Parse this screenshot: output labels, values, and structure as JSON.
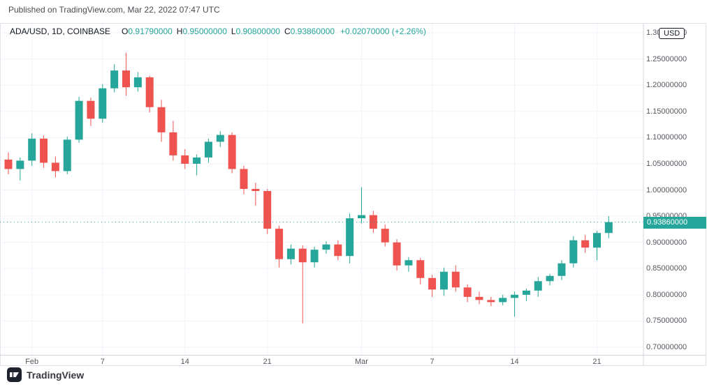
{
  "published_note": "Published on TradingView.com, Mar 22, 2022 07:47 UTC",
  "legend": {
    "symbol": "ADA/USD, 1D, COINBASE",
    "ohlc": [
      {
        "label": "O",
        "value": "0.91790000"
      },
      {
        "label": "H",
        "value": "0.95000000"
      },
      {
        "label": "L",
        "value": "0.90800000"
      },
      {
        "label": "C",
        "value": "0.93860000"
      }
    ],
    "change": "+0.02070000 (+2.26%)"
  },
  "footer": {
    "brand": "TradingView"
  },
  "colors": {
    "up": "#26a69a",
    "down": "#ef5350",
    "grid": "#f0f3fa",
    "axis_border": "#d1d4dc",
    "axis_text": "#555860",
    "badge_bg": "#26a69a"
  },
  "chart_data": {
    "type": "candlestick",
    "symbol": "ADA/USD",
    "interval": "1D",
    "exchange": "COINBASE",
    "title": "ADA/USD, 1D, COINBASE",
    "currency": "USD",
    "last_price": 0.9386,
    "last_price_label": "0.93860000",
    "open": 0.9179,
    "high": 0.95,
    "low": 0.908,
    "close": 0.9386,
    "change_abs": "+0.02070000",
    "change_pct": "+2.26%",
    "y_axis": {
      "min": 0.7,
      "max": 1.3,
      "tick_step": 0.05,
      "ticks": [
        {
          "price": 1.3,
          "label": "1.30000000"
        },
        {
          "price": 1.25,
          "label": "1.25000000"
        },
        {
          "price": 1.2,
          "label": "1.20000000"
        },
        {
          "price": 1.15,
          "label": "1.15000000"
        },
        {
          "price": 1.1,
          "label": "1.10000000"
        },
        {
          "price": 1.05,
          "label": "1.05000000"
        },
        {
          "price": 1.0,
          "label": "1.00000000"
        },
        {
          "price": 0.95,
          "label": "0.95000000"
        },
        {
          "price": 0.9,
          "label": "0.90000000"
        },
        {
          "price": 0.85,
          "label": "0.85000000"
        },
        {
          "price": 0.8,
          "label": "0.80000000"
        },
        {
          "price": 0.75,
          "label": "0.75000000"
        },
        {
          "price": 0.7,
          "label": "0.70000000"
        }
      ]
    },
    "x_axis": {
      "ticks": [
        {
          "label": "Feb",
          "index": 2
        },
        {
          "label": "7",
          "index": 8
        },
        {
          "label": "14",
          "index": 15
        },
        {
          "label": "21",
          "index": 22
        },
        {
          "label": "Mar",
          "index": 30
        },
        {
          "label": "7",
          "index": 36
        },
        {
          "label": "14",
          "index": 43
        },
        {
          "label": "21",
          "index": 50
        }
      ]
    },
    "candles": [
      {
        "date": "Jan 30",
        "o": 1.058,
        "h": 1.072,
        "l": 1.03,
        "c": 1.04
      },
      {
        "date": "Jan 31",
        "o": 1.04,
        "h": 1.062,
        "l": 1.018,
        "c": 1.056
      },
      {
        "date": "Feb 1",
        "o": 1.056,
        "h": 1.108,
        "l": 1.046,
        "c": 1.098
      },
      {
        "date": "Feb 2",
        "o": 1.098,
        "h": 1.104,
        "l": 1.042,
        "c": 1.052
      },
      {
        "date": "Feb 3",
        "o": 1.052,
        "h": 1.064,
        "l": 1.024,
        "c": 1.036
      },
      {
        "date": "Feb 4",
        "o": 1.036,
        "h": 1.102,
        "l": 1.03,
        "c": 1.096
      },
      {
        "date": "Feb 5",
        "o": 1.096,
        "h": 1.178,
        "l": 1.09,
        "c": 1.17
      },
      {
        "date": "Feb 6",
        "o": 1.17,
        "h": 1.176,
        "l": 1.122,
        "c": 1.136
      },
      {
        "date": "Feb 7",
        "o": 1.136,
        "h": 1.202,
        "l": 1.128,
        "c": 1.194
      },
      {
        "date": "Feb 8",
        "o": 1.194,
        "h": 1.24,
        "l": 1.186,
        "c": 1.228
      },
      {
        "date": "Feb 9",
        "o": 1.228,
        "h": 1.262,
        "l": 1.18,
        "c": 1.196
      },
      {
        "date": "Feb 10",
        "o": 1.196,
        "h": 1.225,
        "l": 1.188,
        "c": 1.215
      },
      {
        "date": "Feb 11",
        "o": 1.215,
        "h": 1.218,
        "l": 1.148,
        "c": 1.158
      },
      {
        "date": "Feb 12",
        "o": 1.158,
        "h": 1.172,
        "l": 1.092,
        "c": 1.11
      },
      {
        "date": "Feb 13",
        "o": 1.11,
        "h": 1.132,
        "l": 1.056,
        "c": 1.066
      },
      {
        "date": "Feb 14",
        "o": 1.066,
        "h": 1.078,
        "l": 1.04,
        "c": 1.05
      },
      {
        "date": "Feb 15",
        "o": 1.05,
        "h": 1.068,
        "l": 1.028,
        "c": 1.062
      },
      {
        "date": "Feb 16",
        "o": 1.062,
        "h": 1.098,
        "l": 1.052,
        "c": 1.092
      },
      {
        "date": "Feb 17",
        "o": 1.092,
        "h": 1.112,
        "l": 1.082,
        "c": 1.105
      },
      {
        "date": "Feb 18",
        "o": 1.105,
        "h": 1.11,
        "l": 1.032,
        "c": 1.04
      },
      {
        "date": "Feb 19",
        "o": 1.04,
        "h": 1.046,
        "l": 0.992,
        "c": 1.002
      },
      {
        "date": "Feb 20",
        "o": 1.002,
        "h": 1.014,
        "l": 0.97,
        "c": 0.998
      },
      {
        "date": "Feb 21",
        "o": 0.998,
        "h": 1.002,
        "l": 0.916,
        "c": 0.926
      },
      {
        "date": "Feb 22",
        "o": 0.926,
        "h": 0.932,
        "l": 0.852,
        "c": 0.868
      },
      {
        "date": "Feb 23",
        "o": 0.868,
        "h": 0.896,
        "l": 0.858,
        "c": 0.888
      },
      {
        "date": "Feb 24",
        "o": 0.888,
        "h": 0.894,
        "l": 0.745,
        "c": 0.862
      },
      {
        "date": "Feb 25",
        "o": 0.862,
        "h": 0.892,
        "l": 0.852,
        "c": 0.886
      },
      {
        "date": "Feb 26",
        "o": 0.886,
        "h": 0.902,
        "l": 0.878,
        "c": 0.896
      },
      {
        "date": "Feb 27",
        "o": 0.896,
        "h": 0.904,
        "l": 0.866,
        "c": 0.874
      },
      {
        "date": "Feb 28",
        "o": 0.874,
        "h": 0.955,
        "l": 0.86,
        "c": 0.946
      },
      {
        "date": "Mar 1",
        "o": 0.946,
        "h": 1.005,
        "l": 0.936,
        "c": 0.952
      },
      {
        "date": "Mar 2",
        "o": 0.952,
        "h": 0.96,
        "l": 0.918,
        "c": 0.926
      },
      {
        "date": "Mar 3",
        "o": 0.926,
        "h": 0.934,
        "l": 0.892,
        "c": 0.9
      },
      {
        "date": "Mar 4",
        "o": 0.9,
        "h": 0.906,
        "l": 0.846,
        "c": 0.856
      },
      {
        "date": "Mar 5",
        "o": 0.856,
        "h": 0.872,
        "l": 0.844,
        "c": 0.866
      },
      {
        "date": "Mar 6",
        "o": 0.866,
        "h": 0.87,
        "l": 0.82,
        "c": 0.832
      },
      {
        "date": "Mar 7",
        "o": 0.832,
        "h": 0.838,
        "l": 0.796,
        "c": 0.81
      },
      {
        "date": "Mar 8",
        "o": 0.81,
        "h": 0.852,
        "l": 0.798,
        "c": 0.844
      },
      {
        "date": "Mar 9",
        "o": 0.844,
        "h": 0.856,
        "l": 0.806,
        "c": 0.814
      },
      {
        "date": "Mar 10",
        "o": 0.814,
        "h": 0.82,
        "l": 0.786,
        "c": 0.796
      },
      {
        "date": "Mar 11",
        "o": 0.796,
        "h": 0.806,
        "l": 0.782,
        "c": 0.79
      },
      {
        "date": "Mar 12",
        "o": 0.79,
        "h": 0.796,
        "l": 0.778,
        "c": 0.786
      },
      {
        "date": "Mar 13",
        "o": 0.786,
        "h": 0.8,
        "l": 0.78,
        "c": 0.794
      },
      {
        "date": "Mar 14",
        "o": 0.794,
        "h": 0.806,
        "l": 0.758,
        "c": 0.8
      },
      {
        "date": "Mar 15",
        "o": 0.8,
        "h": 0.812,
        "l": 0.788,
        "c": 0.808
      },
      {
        "date": "Mar 16",
        "o": 0.808,
        "h": 0.834,
        "l": 0.796,
        "c": 0.826
      },
      {
        "date": "Mar 17",
        "o": 0.826,
        "h": 0.84,
        "l": 0.818,
        "c": 0.836
      },
      {
        "date": "Mar 18",
        "o": 0.836,
        "h": 0.866,
        "l": 0.828,
        "c": 0.86
      },
      {
        "date": "Mar 19",
        "o": 0.86,
        "h": 0.912,
        "l": 0.852,
        "c": 0.904
      },
      {
        "date": "Mar 20",
        "o": 0.904,
        "h": 0.914,
        "l": 0.88,
        "c": 0.89
      },
      {
        "date": "Mar 21",
        "o": 0.89,
        "h": 0.922,
        "l": 0.866,
        "c": 0.9179
      },
      {
        "date": "Mar 22",
        "o": 0.9179,
        "h": 0.95,
        "l": 0.908,
        "c": 0.9386
      }
    ]
  }
}
